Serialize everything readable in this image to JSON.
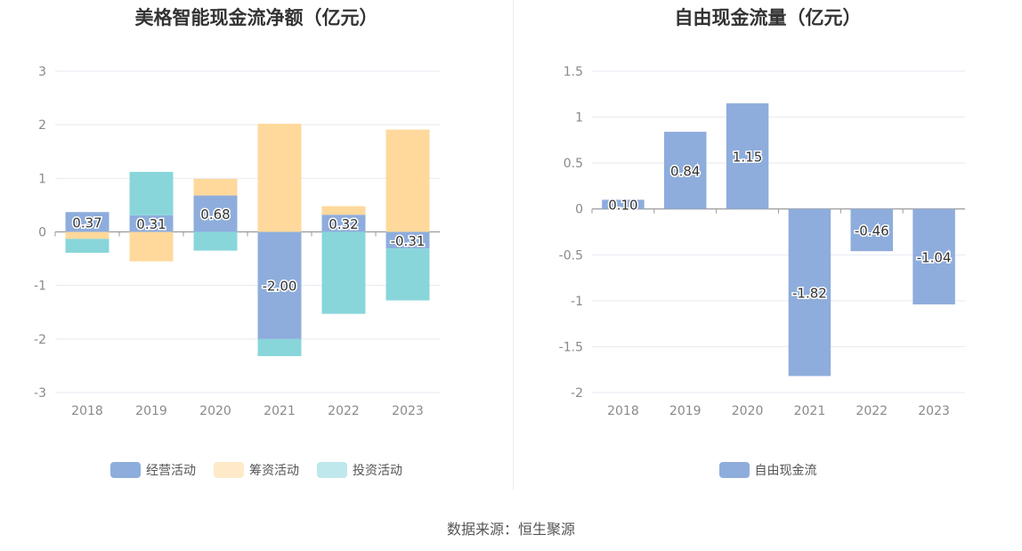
{
  "footer": "数据来源：恒生聚源",
  "chart_data": [
    {
      "type": "bar",
      "stacked": true,
      "title": "美格智能现金流净额（亿元）",
      "categories": [
        "2018",
        "2019",
        "2020",
        "2021",
        "2022",
        "2023"
      ],
      "ylim": [
        -3,
        3
      ],
      "yticks": [
        3,
        2,
        1,
        0,
        -1,
        -2,
        -3
      ],
      "grid": true,
      "legend_position": "bottom",
      "series": [
        {
          "name": "经营活动",
          "color": "#8eaddc",
          "values": [
            0.37,
            0.31,
            0.68,
            -2.0,
            0.32,
            -0.31
          ],
          "labels": [
            "0.37",
            "0.31",
            "0.68",
            "-2.00",
            "0.32",
            "-0.31"
          ]
        },
        {
          "name": "筹资活动",
          "color": "#fed99b",
          "values": [
            -0.13,
            -0.55,
            0.31,
            2.02,
            0.16,
            1.91
          ]
        },
        {
          "name": "投资活动",
          "color": "#88d6da",
          "values": [
            -0.26,
            0.81,
            -0.35,
            -0.32,
            -1.53,
            -0.97
          ]
        }
      ]
    },
    {
      "type": "bar",
      "title": "自由现金流量（亿元）",
      "categories": [
        "2018",
        "2019",
        "2020",
        "2021",
        "2022",
        "2023"
      ],
      "ylim": [
        -2,
        1.5
      ],
      "yticks": [
        1.5,
        1,
        0.5,
        0,
        -0.5,
        -1,
        -1.5,
        -2
      ],
      "grid": true,
      "legend_position": "bottom",
      "series": [
        {
          "name": "自由现金流",
          "color": "#8eaddc",
          "values": [
            0.1,
            0.84,
            1.15,
            -1.82,
            -0.46,
            -1.04
          ],
          "labels": [
            "0.10",
            "0.84",
            "1.15",
            "-1.82",
            "-0.46",
            "-1.04"
          ]
        }
      ]
    }
  ]
}
